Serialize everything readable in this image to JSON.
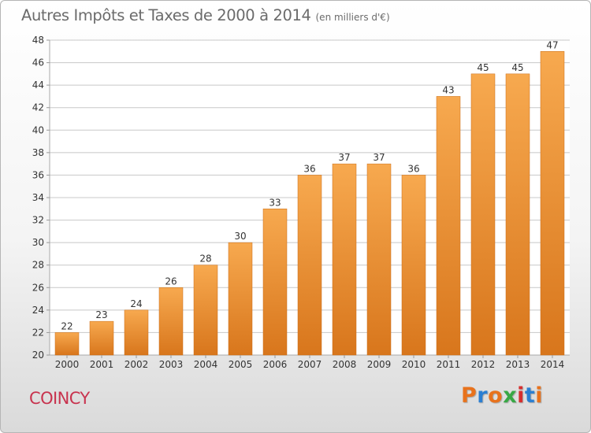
{
  "header": {
    "title": "Autres Impôts et Taxes de 2000 à 2014",
    "unit": "(en milliers d'€)"
  },
  "footer": {
    "place": "COINCY",
    "logo": "Proxiti",
    "logo_colors": [
      "#e8721c",
      "#2b7fd2",
      "#e8721c",
      "#38a845",
      "#d62f2f",
      "#2b7fd2",
      "#e8721c"
    ]
  },
  "colors": {
    "bar_top": "#f7a94f",
    "bar_bottom": "#d8761c",
    "grid": "#c8c8c8",
    "axis_text": "#333333"
  },
  "chart_data": {
    "type": "bar",
    "title": "Autres Impôts et Taxes de 2000 à 2014",
    "categories": [
      "2000",
      "2001",
      "2002",
      "2003",
      "2004",
      "2005",
      "2006",
      "2007",
      "2008",
      "2009",
      "2010",
      "2011",
      "2012",
      "2013",
      "2014"
    ],
    "values": [
      22,
      23,
      24,
      26,
      28,
      30,
      33,
      36,
      37,
      37,
      36,
      43,
      45,
      45,
      47
    ],
    "yticks": [
      "20",
      "22",
      "24",
      "26",
      "28",
      "30",
      "32",
      "34",
      "36",
      "38",
      "40",
      "42",
      "44",
      "46",
      "48"
    ],
    "ylim": [
      20,
      48
    ],
    "xlabel": "",
    "ylabel": "",
    "grid": true,
    "data_labels": true
  }
}
